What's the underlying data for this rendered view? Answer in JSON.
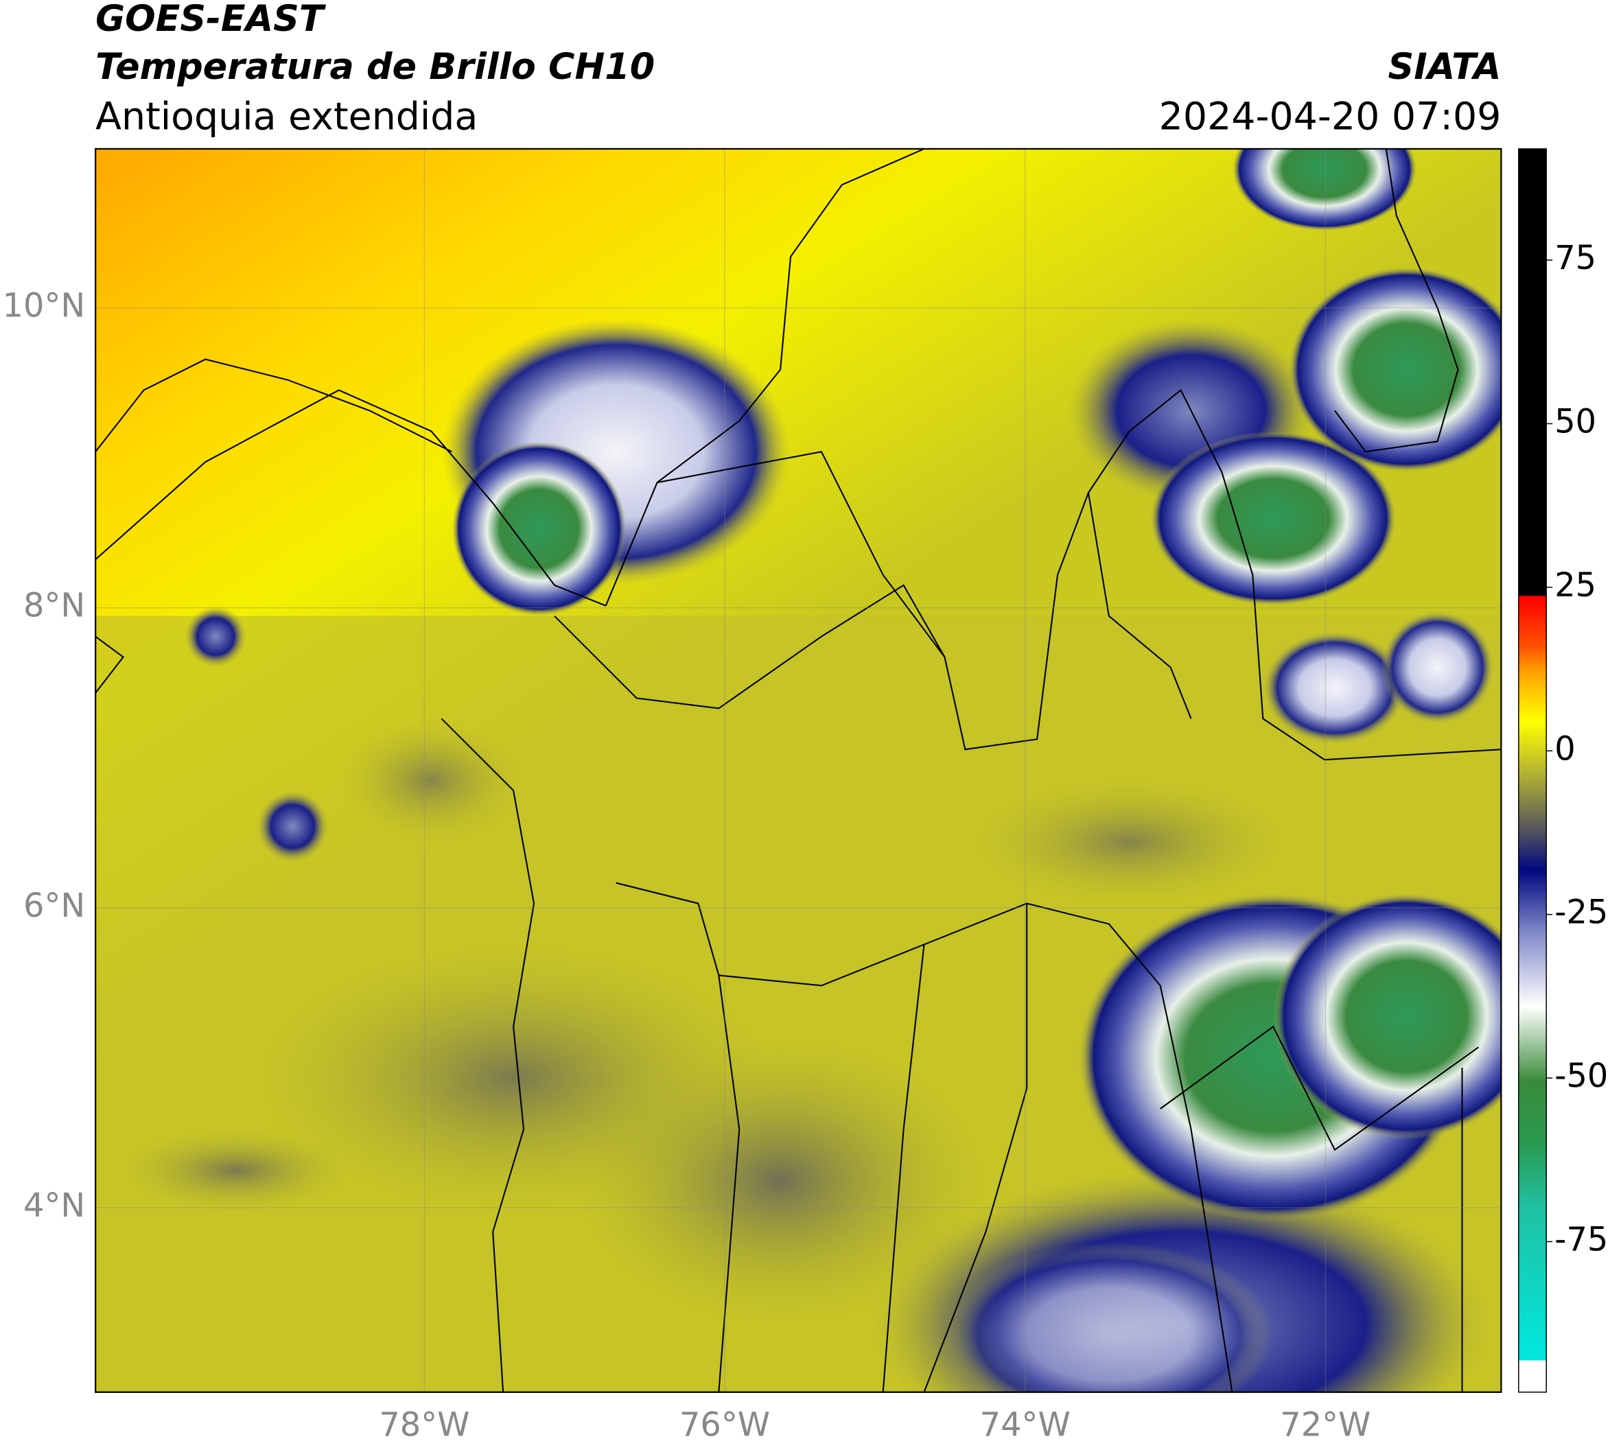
{
  "chart_data": {
    "type": "map",
    "title": "GOES-EAST",
    "subtitle": "Temperatura de Brillo CH10",
    "region": "Antioquia extendida",
    "source": "SIATA",
    "datetime": "2024-04-20 07:09",
    "xlim": [
      -80.19,
      -70.83
    ],
    "ylim": [
      2.77,
      11.06
    ],
    "xticks": [
      {
        "value": -78,
        "label": "78°W"
      },
      {
        "value": -76,
        "label": "76°W"
      },
      {
        "value": -74,
        "label": "74°W"
      },
      {
        "value": -72,
        "label": "72°W"
      }
    ],
    "yticks": [
      {
        "value": 4,
        "label": "4°N"
      },
      {
        "value": 6,
        "label": "6°N"
      },
      {
        "value": 8,
        "label": "8°N"
      },
      {
        "value": 10,
        "label": "10°N"
      }
    ],
    "grid": true,
    "colorbar": {
      "lim": [
        -98,
        92
      ],
      "ticks": [
        75,
        50,
        25,
        0,
        -25,
        -50,
        -75
      ]
    }
  }
}
